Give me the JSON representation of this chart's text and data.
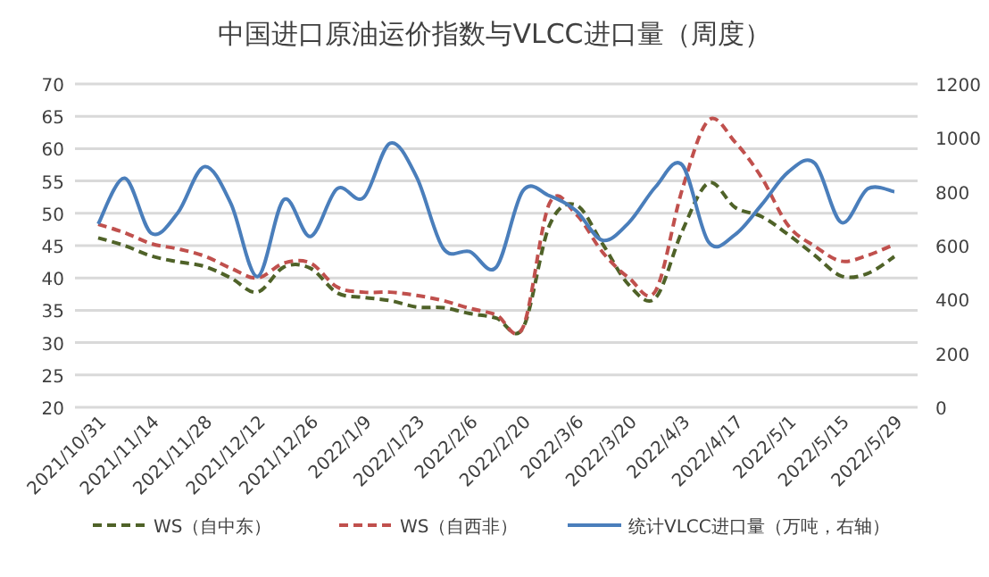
{
  "chart_data": {
    "type": "line",
    "title": "中国进口原油运价指数与VLCC进口量（周度）",
    "categories": [
      "2021/10/31",
      null,
      "2021/11/14",
      null,
      "2021/11/28",
      null,
      "2021/12/12",
      null,
      "2021/12/26",
      null,
      "2022/1/9",
      null,
      "2022/1/23",
      null,
      "2022/2/6",
      null,
      "2022/2/20",
      null,
      "2022/3/6",
      null,
      "2022/3/20",
      null,
      "2022/4/3",
      null,
      "2022/4/17",
      null,
      "2022/5/1",
      null,
      "2022/5/15",
      null,
      "2022/5/29"
    ],
    "series": [
      {
        "name": "WS（自中东）",
        "color": "#4f6228",
        "line_style": "dashed",
        "values": [
          46.2,
          45,
          43.4,
          42.5,
          41.8,
          40,
          37.8,
          41.7,
          41.5,
          37.7,
          37,
          36.5,
          35.5,
          35.4,
          34.5,
          33.8,
          32.2,
          48.1,
          51.3,
          45.3,
          38.9,
          36.9,
          47.2,
          54.7,
          50.9,
          49.5,
          46.7,
          43.5,
          40.3,
          40.7,
          43.3
        ]
      },
      {
        "name": "WS（自西非）",
        "color": "#c0504d",
        "line_style": "dashed",
        "values": [
          48.3,
          47,
          45.3,
          44.5,
          43.4,
          41.5,
          40,
          42.3,
          42.3,
          38.6,
          37.8,
          37.8,
          37.3,
          36.5,
          35.3,
          34.3,
          32.3,
          51.5,
          49.9,
          44,
          40,
          38,
          53.6,
          64.4,
          61,
          55.5,
          48.1,
          44.9,
          42.6,
          43.5,
          45.2
        ]
      },
      {
        "name": "统计VLCC进口量（万吨，右轴）",
        "color": "#4a7ebb",
        "line_style": "solid",
        "axis": "y2",
        "values": [
          680,
          850,
          646,
          722,
          893,
          756,
          485,
          771,
          634,
          811,
          778,
          980,
          854,
          590,
          578,
          520,
          803,
          785,
          730,
          620,
          686,
          818,
          900,
          613,
          641,
          752,
          873,
          906,
          686,
          811,
          800
        ]
      }
    ],
    "ylim": [
      20,
      70
    ],
    "yticks": [
      20,
      25,
      30,
      35,
      40,
      45,
      50,
      55,
      60,
      65,
      70
    ],
    "y2lim": [
      0,
      1200
    ],
    "y2ticks": [
      0,
      200,
      400,
      600,
      800,
      1000,
      1200
    ],
    "grid": "y",
    "legend": "bottom"
  }
}
